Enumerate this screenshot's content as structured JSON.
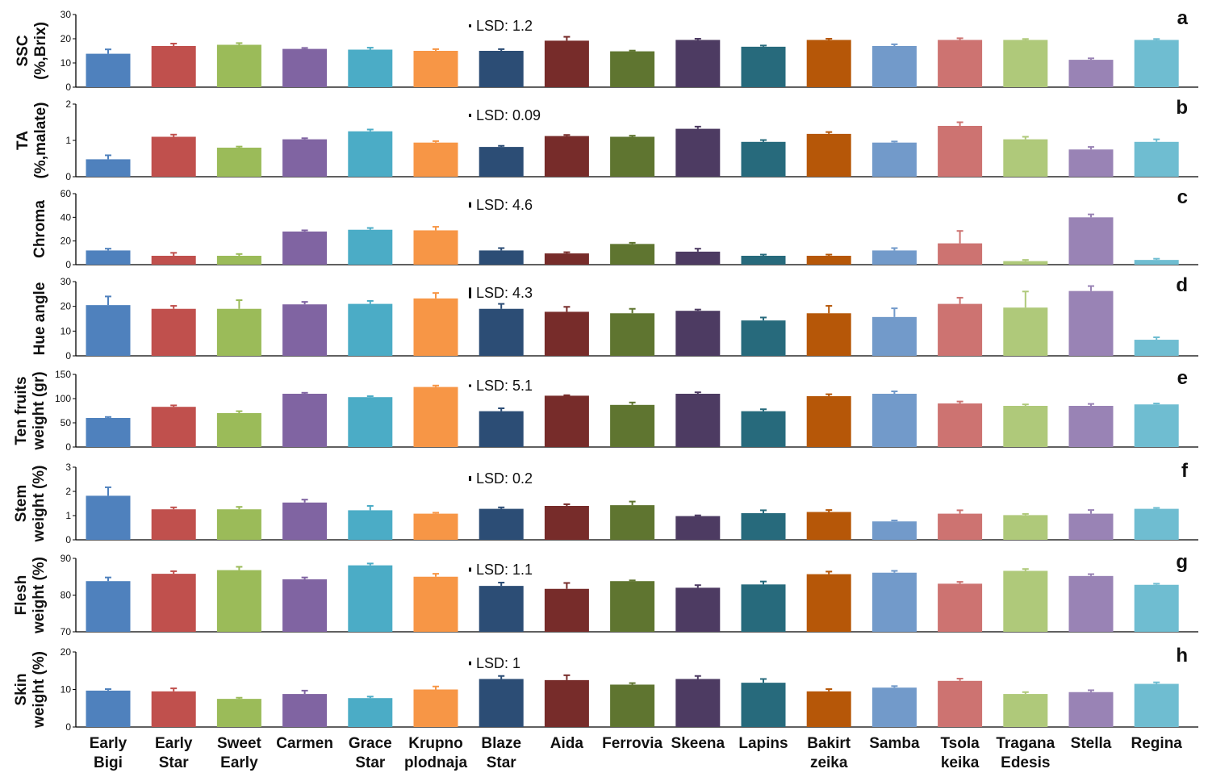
{
  "colors": [
    "#4f81bd",
    "#c0504d",
    "#9bbb59",
    "#8064a2",
    "#4bacc6",
    "#f79646",
    "#2c4d75",
    "#772c2a",
    "#5f7530",
    "#4d3b62",
    "#276a7c",
    "#b65708",
    "#729aca",
    "#cd7371",
    "#afc97a",
    "#9983b5",
    "#6fbdd1"
  ],
  "chart_data": {
    "type": "bar",
    "categories": [
      [
        "Early",
        "Bigi"
      ],
      [
        "Early",
        "Star"
      ],
      [
        "Sweet",
        "Early"
      ],
      [
        "Carmen"
      ],
      [
        "Grace",
        "Star"
      ],
      [
        "Krupno",
        "plodnaja"
      ],
      [
        "Blaze",
        "Star"
      ],
      [
        "Aida"
      ],
      [
        "Ferrovia"
      ],
      [
        "Skeena"
      ],
      [
        "Lapins"
      ],
      [
        "Bakirt",
        "zeika"
      ],
      [
        "Samba"
      ],
      [
        "Tsola",
        "keika"
      ],
      [
        "Tragana",
        "Edesis"
      ],
      [
        "Stella"
      ],
      [
        "Regina"
      ]
    ],
    "panels": [
      {
        "letter": "a",
        "ylabel": [
          "SSC",
          "(%,Brix)"
        ],
        "ylim": [
          0,
          30
        ],
        "yticks": [
          0,
          10,
          20,
          30
        ],
        "lsd_label": "LSD: 1.2",
        "lsd": 1.2,
        "values": [
          13.8,
          17,
          17.5,
          15.8,
          15.5,
          15,
          15,
          19.2,
          14.8,
          19.5,
          16.7,
          19.5,
          17,
          19.5,
          19.5,
          11.3,
          19.5
        ],
        "errors": [
          1.8,
          1.0,
          0.7,
          0.4,
          0.8,
          0.7,
          0.7,
          1.6,
          0.3,
          0.5,
          0.5,
          0.5,
          0.7,
          0.7,
          0.4,
          0.6,
          0.4
        ]
      },
      {
        "letter": "b",
        "ylabel": [
          "TA",
          "(%,malate)"
        ],
        "ylim": [
          0,
          2
        ],
        "yticks": [
          0,
          1,
          2
        ],
        "lsd_label": "LSD: 0.09",
        "lsd": 0.09,
        "values": [
          0.48,
          1.1,
          0.8,
          1.03,
          1.25,
          0.94,
          0.82,
          1.12,
          1.1,
          1.32,
          0.96,
          1.18,
          0.94,
          1.4,
          1.03,
          0.75,
          0.96
        ],
        "errors": [
          0.11,
          0.06,
          0.03,
          0.03,
          0.05,
          0.04,
          0.03,
          0.03,
          0.03,
          0.06,
          0.05,
          0.05,
          0.03,
          0.1,
          0.07,
          0.07,
          0.07
        ]
      },
      {
        "letter": "c",
        "ylabel": [
          "Chroma"
        ],
        "ylim": [
          0,
          60
        ],
        "yticks": [
          0,
          20,
          40,
          60
        ],
        "lsd_label": "LSD: 4.6",
        "lsd": 4.6,
        "values": [
          12,
          7.5,
          7.5,
          28,
          29.5,
          29,
          12,
          9.5,
          17.5,
          11,
          7.5,
          7.5,
          12,
          18,
          3,
          40,
          4
        ],
        "errors": [
          1.5,
          2.5,
          1.5,
          1,
          1.5,
          3,
          2,
          1,
          1,
          2.5,
          1,
          1,
          2,
          10.5,
          1,
          2.5,
          1
        ]
      },
      {
        "letter": "d",
        "ylabel": [
          "Hue angle"
        ],
        "ylim": [
          0,
          30
        ],
        "yticks": [
          0,
          10,
          20,
          30
        ],
        "lsd_label": "LSD: 4.3",
        "lsd": 4.3,
        "values": [
          20.5,
          19,
          19,
          20.8,
          21,
          23.2,
          19,
          17.8,
          17.2,
          18.2,
          14.3,
          17.2,
          15.7,
          21,
          19.5,
          26.2,
          6.5
        ],
        "errors": [
          3.5,
          1.2,
          3.5,
          1,
          1.2,
          2.2,
          2,
          2,
          1.8,
          0.5,
          1.2,
          3,
          3.5,
          2.5,
          6.5,
          2,
          1
        ]
      },
      {
        "letter": "e",
        "ylabel": [
          "Ten fruits",
          "weight (gr)"
        ],
        "ylim": [
          0,
          150
        ],
        "yticks": [
          0,
          50,
          100,
          150
        ],
        "lsd_label": "LSD: 5.1",
        "lsd": 5.1,
        "values": [
          60,
          83,
          70,
          110,
          103,
          124,
          74,
          106,
          87,
          110,
          74,
          105,
          110,
          90,
          85,
          85,
          88
        ],
        "errors": [
          2,
          3,
          4,
          2,
          2,
          3,
          6,
          1,
          5,
          3,
          4,
          4,
          5,
          4,
          3,
          4,
          2
        ]
      },
      {
        "letter": "f",
        "ylabel": [
          "Stem",
          "weight (%)"
        ],
        "ylim": [
          0,
          3
        ],
        "yticks": [
          0,
          1,
          2,
          3
        ],
        "lsd_label": "LSD: 0.2",
        "lsd": 0.2,
        "values": [
          1.82,
          1.26,
          1.26,
          1.54,
          1.22,
          1.08,
          1.28,
          1.4,
          1.43,
          0.98,
          1.1,
          1.15,
          0.76,
          1.08,
          1.02,
          1.08,
          1.28
        ],
        "errors": [
          0.35,
          0.08,
          0.1,
          0.12,
          0.18,
          0.04,
          0.06,
          0.07,
          0.15,
          0.03,
          0.12,
          0.08,
          0.04,
          0.14,
          0.05,
          0.15,
          0.04
        ]
      },
      {
        "letter": "g",
        "ylabel": [
          "Flesh",
          "weight (%)"
        ],
        "ylim": [
          70,
          90
        ],
        "yticks": [
          70,
          80,
          90
        ],
        "lsd_label": "LSD: 1.1",
        "lsd": 1.1,
        "values": [
          83.8,
          85.8,
          86.8,
          84.3,
          88.1,
          85,
          82.5,
          81.7,
          83.8,
          82,
          82.9,
          85.7,
          86.1,
          83.1,
          86.6,
          85.2,
          82.8
        ],
        "errors": [
          1,
          0.7,
          0.9,
          0.5,
          0.5,
          0.8,
          0.9,
          1.6,
          0.2,
          0.7,
          0.8,
          0.7,
          0.5,
          0.5,
          0.5,
          0.5,
          0.3
        ]
      },
      {
        "letter": "h",
        "ylabel": [
          "Skin",
          "weight (%)"
        ],
        "ylim": [
          0,
          20
        ],
        "yticks": [
          0,
          10,
          20
        ],
        "lsd_label": "LSD: 1",
        "lsd": 1,
        "values": [
          9.7,
          9.5,
          7.5,
          8.8,
          7.7,
          10,
          12.8,
          12.5,
          11.3,
          12.8,
          11.8,
          9.5,
          10.5,
          12.3,
          8.8,
          9.3,
          11.5
        ],
        "errors": [
          0.4,
          0.8,
          0.3,
          0.9,
          0.4,
          0.8,
          0.8,
          1.3,
          0.4,
          0.8,
          1,
          0.6,
          0.4,
          0.6,
          0.5,
          0.5,
          0.4
        ]
      }
    ]
  }
}
